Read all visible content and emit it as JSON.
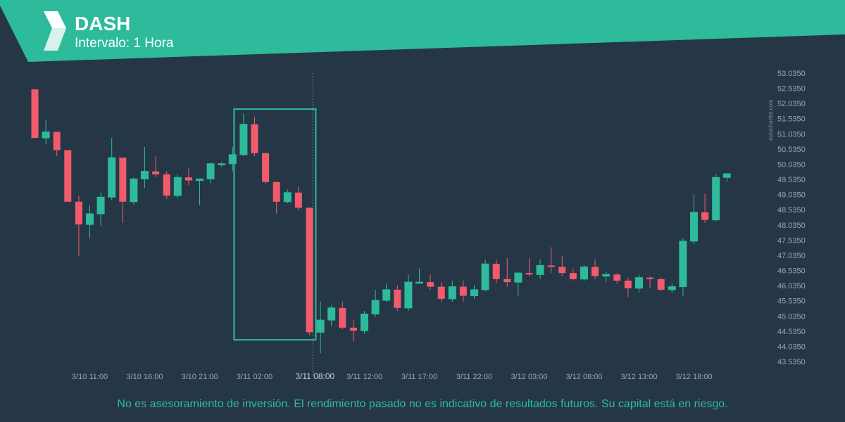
{
  "header": {
    "title": "DASH",
    "subtitle": "Intervalo: 1 Hora",
    "band_color": "#2dbb9b",
    "logo_icon": "autochartist-logo-icon"
  },
  "watermark": "autochartist.com",
  "disclaimer": "No es asesoramiento de inversión. El rendimiento pasado no es indicativo de resultados futuros. Su capital está en riesgo.",
  "colors": {
    "background": "#253746",
    "bull": "#2dbb9b",
    "bear": "#f15b6c",
    "pattern_box": "#2dbb9b",
    "axis_text": "#9aa6b1"
  },
  "chart_data": {
    "type": "candlestick",
    "symbol": "DASH",
    "interval": "1 Hora",
    "y_ticks": [
      "53.0350",
      "52.5350",
      "52.0350",
      "51.5350",
      "51.0350",
      "50.5350",
      "50.0350",
      "49.5350",
      "49.0350",
      "48.5350",
      "48.0350",
      "47.5350",
      "47.0350",
      "46.5350",
      "46.0350",
      "45.5350",
      "45.0350",
      "44.5350",
      "44.0350",
      "43.5350"
    ],
    "ylim": [
      43.535,
      53.035
    ],
    "x_ticks": [
      {
        "label": "3/10 11:00",
        "index": 5
      },
      {
        "label": "3/10 16:00",
        "index": 10
      },
      {
        "label": "3/10 21:00",
        "index": 15
      },
      {
        "label": "3/11 02:00",
        "index": 20
      },
      {
        "label": "3/11 08:00",
        "index": 25.5,
        "highlight": true
      },
      {
        "label": "3/11 12:00",
        "index": 30
      },
      {
        "label": "3/11 17:00",
        "index": 35
      },
      {
        "label": "3/11 22:00",
        "index": 40
      },
      {
        "label": "3/12 03:00",
        "index": 45
      },
      {
        "label": "3/12 08:00",
        "index": 50
      },
      {
        "label": "3/12 13:00",
        "index": 55
      },
      {
        "label": "3/12 18:00",
        "index": 60
      }
    ],
    "candles": [
      {
        "o": 52.5,
        "h": 52.5,
        "l": 50.9,
        "c": 50.9
      },
      {
        "o": 50.9,
        "h": 51.5,
        "l": 50.7,
        "c": 51.1
      },
      {
        "o": 51.1,
        "h": 51.1,
        "l": 50.3,
        "c": 50.5
      },
      {
        "o": 50.5,
        "h": 50.5,
        "l": 48.8,
        "c": 48.8
      },
      {
        "o": 48.8,
        "h": 49.0,
        "l": 47.0,
        "c": 48.05
      },
      {
        "o": 48.05,
        "h": 48.7,
        "l": 47.6,
        "c": 48.4
      },
      {
        "o": 48.4,
        "h": 49.1,
        "l": 48.0,
        "c": 48.95
      },
      {
        "o": 48.95,
        "h": 50.9,
        "l": 48.85,
        "c": 50.25
      },
      {
        "o": 50.25,
        "h": 50.25,
        "l": 48.1,
        "c": 48.8
      },
      {
        "o": 48.8,
        "h": 49.6,
        "l": 48.7,
        "c": 49.55
      },
      {
        "o": 49.55,
        "h": 50.6,
        "l": 49.25,
        "c": 49.8
      },
      {
        "o": 49.8,
        "h": 50.3,
        "l": 49.6,
        "c": 49.7
      },
      {
        "o": 49.7,
        "h": 49.8,
        "l": 48.9,
        "c": 49.0
      },
      {
        "o": 49.0,
        "h": 49.7,
        "l": 48.9,
        "c": 49.6
      },
      {
        "o": 49.6,
        "h": 49.9,
        "l": 49.35,
        "c": 49.5
      },
      {
        "o": 49.5,
        "h": 49.55,
        "l": 48.7,
        "c": 49.55
      },
      {
        "o": 49.55,
        "h": 50.1,
        "l": 49.4,
        "c": 50.05
      },
      {
        "o": 50.05,
        "h": 50.1,
        "l": 49.95,
        "c": 50.05
      },
      {
        "o": 50.05,
        "h": 50.6,
        "l": 49.8,
        "c": 50.35
      },
      {
        "o": 50.35,
        "h": 51.7,
        "l": 50.3,
        "c": 51.35
      },
      {
        "o": 51.35,
        "h": 51.6,
        "l": 50.3,
        "c": 50.4
      },
      {
        "o": 50.4,
        "h": 50.4,
        "l": 49.4,
        "c": 49.45
      },
      {
        "o": 49.45,
        "h": 49.45,
        "l": 48.4,
        "c": 48.8
      },
      {
        "o": 48.8,
        "h": 49.2,
        "l": 48.75,
        "c": 49.1
      },
      {
        "o": 49.1,
        "h": 49.3,
        "l": 48.5,
        "c": 48.6
      },
      {
        "o": 48.6,
        "h": 48.6,
        "l": 44.4,
        "c": 44.5
      },
      {
        "o": 44.5,
        "h": 45.5,
        "l": 43.8,
        "c": 44.9
      },
      {
        "o": 44.9,
        "h": 45.4,
        "l": 44.7,
        "c": 45.3
      },
      {
        "o": 45.3,
        "h": 45.5,
        "l": 44.6,
        "c": 44.65
      },
      {
        "o": 44.65,
        "h": 44.9,
        "l": 44.2,
        "c": 44.55
      },
      {
        "o": 44.55,
        "h": 45.2,
        "l": 44.45,
        "c": 45.1
      },
      {
        "o": 45.1,
        "h": 45.9,
        "l": 45.0,
        "c": 45.55
      },
      {
        "o": 45.55,
        "h": 46.1,
        "l": 45.5,
        "c": 45.9
      },
      {
        "o": 45.9,
        "h": 46.05,
        "l": 45.2,
        "c": 45.3
      },
      {
        "o": 45.3,
        "h": 46.4,
        "l": 45.2,
        "c": 46.15
      },
      {
        "o": 46.15,
        "h": 46.6,
        "l": 46.1,
        "c": 46.15
      },
      {
        "o": 46.15,
        "h": 46.4,
        "l": 45.9,
        "c": 46.0
      },
      {
        "o": 46.0,
        "h": 46.15,
        "l": 45.5,
        "c": 45.6
      },
      {
        "o": 45.6,
        "h": 46.2,
        "l": 45.5,
        "c": 46.0
      },
      {
        "o": 46.0,
        "h": 46.2,
        "l": 45.5,
        "c": 45.7
      },
      {
        "o": 45.7,
        "h": 46.05,
        "l": 45.6,
        "c": 45.9
      },
      {
        "o": 45.9,
        "h": 46.9,
        "l": 45.85,
        "c": 46.75
      },
      {
        "o": 46.75,
        "h": 46.9,
        "l": 46.1,
        "c": 46.25
      },
      {
        "o": 46.25,
        "h": 46.95,
        "l": 46.0,
        "c": 46.15
      },
      {
        "o": 46.15,
        "h": 46.5,
        "l": 45.7,
        "c": 46.45
      },
      {
        "o": 46.45,
        "h": 46.95,
        "l": 46.35,
        "c": 46.4
      },
      {
        "o": 46.4,
        "h": 46.9,
        "l": 46.25,
        "c": 46.7
      },
      {
        "o": 46.7,
        "h": 47.3,
        "l": 46.45,
        "c": 46.65
      },
      {
        "o": 46.65,
        "h": 47.0,
        "l": 46.35,
        "c": 46.45
      },
      {
        "o": 46.45,
        "h": 46.6,
        "l": 46.2,
        "c": 46.25
      },
      {
        "o": 46.25,
        "h": 46.7,
        "l": 46.2,
        "c": 46.65
      },
      {
        "o": 46.65,
        "h": 46.9,
        "l": 46.25,
        "c": 46.35
      },
      {
        "o": 46.35,
        "h": 46.5,
        "l": 46.15,
        "c": 46.4
      },
      {
        "o": 46.4,
        "h": 46.45,
        "l": 46.1,
        "c": 46.2
      },
      {
        "o": 46.2,
        "h": 46.3,
        "l": 45.65,
        "c": 45.95
      },
      {
        "o": 45.95,
        "h": 46.4,
        "l": 45.8,
        "c": 46.3
      },
      {
        "o": 46.3,
        "h": 46.35,
        "l": 45.95,
        "c": 46.25
      },
      {
        "o": 46.25,
        "h": 46.3,
        "l": 45.85,
        "c": 45.9
      },
      {
        "o": 45.9,
        "h": 46.1,
        "l": 45.8,
        "c": 46.0
      },
      {
        "o": 46.0,
        "h": 47.6,
        "l": 45.7,
        "c": 47.5
      },
      {
        "o": 47.5,
        "h": 49.05,
        "l": 47.4,
        "c": 48.45
      },
      {
        "o": 48.45,
        "h": 49.05,
        "l": 48.1,
        "c": 48.2
      },
      {
        "o": 48.2,
        "h": 49.7,
        "l": 48.15,
        "c": 49.6
      },
      {
        "o": 49.6,
        "h": 49.75,
        "l": 49.45,
        "c": 49.72
      }
    ],
    "pattern_box": {
      "start_index": 19,
      "end_index": 25,
      "low": 44.25,
      "high": 51.85
    },
    "marker_index": 25
  }
}
